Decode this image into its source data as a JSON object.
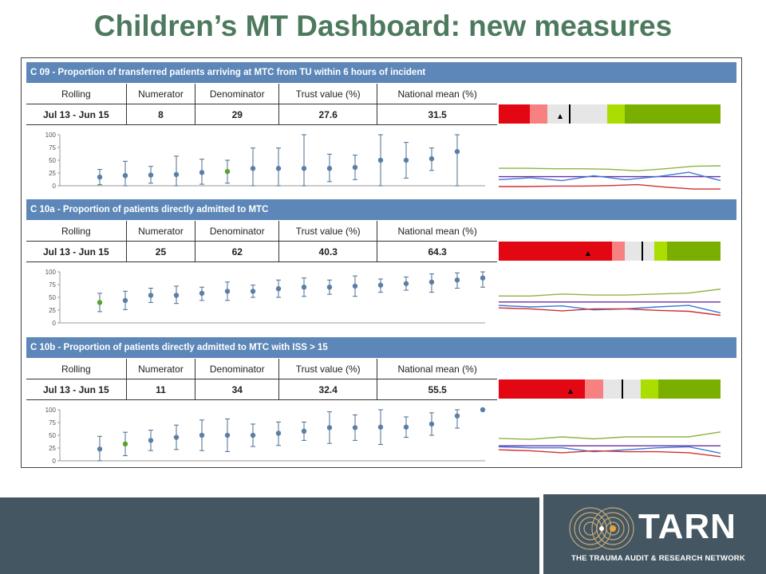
{
  "title": "Children’s MT Dashboard: new measures",
  "stat_headers": [
    "Rolling",
    "Numerator",
    "Denominator",
    "Trust value (%)",
    "National mean (%)"
  ],
  "panels": [
    {
      "header": "C 09 - Proportion of transferred patients arriving at MTC from TU within 6 hours of incident",
      "stats": {
        "rolling": "Jul  13 - Jun  15",
        "numerator": "8",
        "denominator": "29",
        "trust_value": "27.6",
        "national_mean": "31.5"
      },
      "bar_segments": [
        {
          "from": 0,
          "to": 14,
          "color": "#e30613"
        },
        {
          "from": 14,
          "to": 22,
          "color": "#f78181"
        },
        {
          "from": 22,
          "to": 40,
          "color": "#e6e6e6"
        },
        {
          "from": 40,
          "to": 49,
          "color": "#e6e6e6"
        },
        {
          "from": 49,
          "to": 57,
          "color": "#aadd00"
        },
        {
          "from": 57,
          "to": 100,
          "color": "#7aaf00"
        }
      ],
      "bar_marker": 27.6,
      "bar_triangle": 27.6,
      "bar_line": 31.5,
      "chart_data": {
        "type": "scatter",
        "title": "",
        "y_ticks": [
          "0",
          "25",
          "50",
          "75",
          "100"
        ],
        "ylim": [
          0,
          100
        ],
        "points": [
          {
            "y": 17,
            "lo": 2,
            "hi": 32,
            "color": "#5a7fa6"
          },
          {
            "y": 20,
            "lo": 0,
            "hi": 48,
            "color": "#5a7fa6"
          },
          {
            "y": 21,
            "lo": 5,
            "hi": 38,
            "color": "#5a7fa6"
          },
          {
            "y": 22,
            "lo": 0,
            "hi": 58,
            "color": "#5a7fa6"
          },
          {
            "y": 26,
            "lo": 3,
            "hi": 52,
            "color": "#5a7fa6"
          },
          {
            "y": 28,
            "lo": 5,
            "hi": 50,
            "color": "#56a22a"
          },
          {
            "y": 34,
            "lo": 0,
            "hi": 74,
            "color": "#5a7fa6"
          },
          {
            "y": 34,
            "lo": 0,
            "hi": 74,
            "color": "#5a7fa6"
          },
          {
            "y": 34,
            "lo": 0,
            "hi": 100,
            "color": "#5a7fa6"
          },
          {
            "y": 34,
            "lo": 8,
            "hi": 62,
            "color": "#5a7fa6"
          },
          {
            "y": 36,
            "lo": 12,
            "hi": 60,
            "color": "#5a7fa6"
          },
          {
            "y": 50,
            "lo": 0,
            "hi": 100,
            "color": "#5a7fa6"
          },
          {
            "y": 50,
            "lo": 15,
            "hi": 85,
            "color": "#5a7fa6"
          },
          {
            "y": 53,
            "lo": 30,
            "hi": 74,
            "color": "#5a7fa6"
          },
          {
            "y": 67,
            "lo": 0,
            "hi": 100,
            "color": "#5a7fa6"
          }
        ]
      },
      "spark": {
        "green": [
          45,
          45,
          44,
          44,
          43,
          40,
          44,
          49,
          50
        ],
        "purple": [
          28,
          28,
          28,
          28,
          28,
          28,
          28,
          28,
          28
        ],
        "blue": [
          22,
          26,
          20,
          30,
          22,
          28,
          37,
          20
        ],
        "red": [
          8,
          8,
          9,
          9,
          10,
          12,
          7,
          3,
          3
        ]
      }
    },
    {
      "header": "C 10a - Proportion of patients directly admitted to MTC",
      "stats": {
        "rolling": "Jul  13 - Jun  15",
        "numerator": "25",
        "denominator": "62",
        "trust_value": "40.3",
        "national_mean": "64.3"
      },
      "bar_segments": [
        {
          "from": 0,
          "to": 51,
          "color": "#e30613"
        },
        {
          "from": 51,
          "to": 57,
          "color": "#f78181"
        },
        {
          "from": 57,
          "to": 64,
          "color": "#e6e6e6"
        },
        {
          "from": 64,
          "to": 70,
          "color": "#e6e6e6"
        },
        {
          "from": 70,
          "to": 76,
          "color": "#aadd00"
        },
        {
          "from": 76,
          "to": 100,
          "color": "#7aaf00"
        }
      ],
      "bar_marker": 40.3,
      "bar_triangle": 40.3,
      "bar_line": 64.3,
      "chart_data": {
        "type": "scatter",
        "title": "",
        "y_ticks": [
          "0",
          "25",
          "50",
          "75",
          "100"
        ],
        "ylim": [
          0,
          100
        ],
        "points": [
          {
            "y": 40,
            "lo": 22,
            "hi": 58,
            "color": "#56a22a"
          },
          {
            "y": 44,
            "lo": 26,
            "hi": 62,
            "color": "#5a7fa6"
          },
          {
            "y": 54,
            "lo": 40,
            "hi": 68,
            "color": "#5a7fa6"
          },
          {
            "y": 54,
            "lo": 38,
            "hi": 72,
            "color": "#5a7fa6"
          },
          {
            "y": 58,
            "lo": 44,
            "hi": 70,
            "color": "#5a7fa6"
          },
          {
            "y": 62,
            "lo": 44,
            "hi": 80,
            "color": "#5a7fa6"
          },
          {
            "y": 62,
            "lo": 50,
            "hi": 74,
            "color": "#5a7fa6"
          },
          {
            "y": 67,
            "lo": 50,
            "hi": 84,
            "color": "#5a7fa6"
          },
          {
            "y": 70,
            "lo": 52,
            "hi": 88,
            "color": "#5a7fa6"
          },
          {
            "y": 70,
            "lo": 56,
            "hi": 84,
            "color": "#5a7fa6"
          },
          {
            "y": 72,
            "lo": 52,
            "hi": 92,
            "color": "#5a7fa6"
          },
          {
            "y": 74,
            "lo": 60,
            "hi": 86,
            "color": "#5a7fa6"
          },
          {
            "y": 77,
            "lo": 64,
            "hi": 90,
            "color": "#5a7fa6"
          },
          {
            "y": 80,
            "lo": 60,
            "hi": 96,
            "color": "#5a7fa6"
          },
          {
            "y": 84,
            "lo": 68,
            "hi": 98,
            "color": "#5a7fa6"
          },
          {
            "y": 88,
            "lo": 70,
            "hi": 100,
            "color": "#5a7fa6"
          }
        ]
      },
      "spark": {
        "green": [
          64,
          64,
          68,
          66,
          66,
          68,
          70,
          78
        ],
        "purple": [
          52,
          52,
          52,
          52,
          52,
          52,
          52,
          52
        ],
        "blue": [
          45,
          42,
          44,
          36,
          38,
          42,
          45,
          30
        ],
        "red": [
          40,
          38,
          34,
          38,
          38,
          35,
          33,
          25
        ]
      }
    },
    {
      "header": "C 10b - Proportion of patients directly admitted to MTC with ISS > 15",
      "stats": {
        "rolling": "Jul  13 - Jun  15",
        "numerator": "11",
        "denominator": "34",
        "trust_value": "32.4",
        "national_mean": "55.5"
      },
      "bar_segments": [
        {
          "from": 0,
          "to": 39,
          "color": "#e30613"
        },
        {
          "from": 39,
          "to": 47,
          "color": "#f78181"
        },
        {
          "from": 47,
          "to": 55,
          "color": "#e6e6e6"
        },
        {
          "from": 55,
          "to": 64,
          "color": "#e6e6e6"
        },
        {
          "from": 64,
          "to": 72,
          "color": "#aadd00"
        },
        {
          "from": 72,
          "to": 100,
          "color": "#7aaf00"
        }
      ],
      "bar_marker": 32.4,
      "bar_triangle": 32.4,
      "bar_line": 55.5,
      "chart_data": {
        "type": "scatter",
        "title": "",
        "y_ticks": [
          "0",
          "25",
          "50",
          "75",
          "100"
        ],
        "ylim": [
          0,
          100
        ],
        "points": [
          {
            "y": 23,
            "lo": 0,
            "hi": 48,
            "color": "#5a7fa6"
          },
          {
            "y": 33,
            "lo": 10,
            "hi": 56,
            "color": "#56a22a"
          },
          {
            "y": 40,
            "lo": 20,
            "hi": 60,
            "color": "#5a7fa6"
          },
          {
            "y": 46,
            "lo": 22,
            "hi": 70,
            "color": "#5a7fa6"
          },
          {
            "y": 50,
            "lo": 20,
            "hi": 80,
            "color": "#5a7fa6"
          },
          {
            "y": 50,
            "lo": 18,
            "hi": 82,
            "color": "#5a7fa6"
          },
          {
            "y": 50,
            "lo": 28,
            "hi": 72,
            "color": "#5a7fa6"
          },
          {
            "y": 54,
            "lo": 30,
            "hi": 76,
            "color": "#5a7fa6"
          },
          {
            "y": 58,
            "lo": 40,
            "hi": 76,
            "color": "#5a7fa6"
          },
          {
            "y": 65,
            "lo": 34,
            "hi": 96,
            "color": "#5a7fa6"
          },
          {
            "y": 65,
            "lo": 40,
            "hi": 90,
            "color": "#5a7fa6"
          },
          {
            "y": 66,
            "lo": 32,
            "hi": 100,
            "color": "#5a7fa6"
          },
          {
            "y": 66,
            "lo": 46,
            "hi": 86,
            "color": "#5a7fa6"
          },
          {
            "y": 72,
            "lo": 50,
            "hi": 94,
            "color": "#5a7fa6"
          },
          {
            "y": 88,
            "lo": 64,
            "hi": 100,
            "color": "#5a7fa6"
          },
          {
            "y": 100,
            "lo": 100,
            "hi": 100,
            "color": "#5a7fa6"
          }
        ]
      },
      "spark": {
        "green": [
          55,
          53,
          58,
          54,
          58,
          58,
          58,
          68
        ],
        "purple": [
          40,
          40,
          40,
          40,
          40,
          40,
          40,
          40
        ],
        "blue": [
          38,
          36,
          36,
          28,
          32,
          36,
          38,
          25
        ],
        "red": [
          32,
          30,
          26,
          30,
          28,
          28,
          26,
          18
        ]
      }
    }
  ],
  "footer": {
    "brand": "TARN",
    "tagline": "THE TRAUMA AUDIT & RESEARCH NETWORK"
  },
  "colors": {
    "title": "#4d7a5e",
    "header": "#5c87b8",
    "point_blue": "#5a7fa6",
    "point_green": "#56a22a",
    "spark_green": "#8db443",
    "spark_purple": "#6a2fa0",
    "spark_blue": "#3b78d8",
    "spark_red": "#d23030",
    "footer": "#435661"
  }
}
